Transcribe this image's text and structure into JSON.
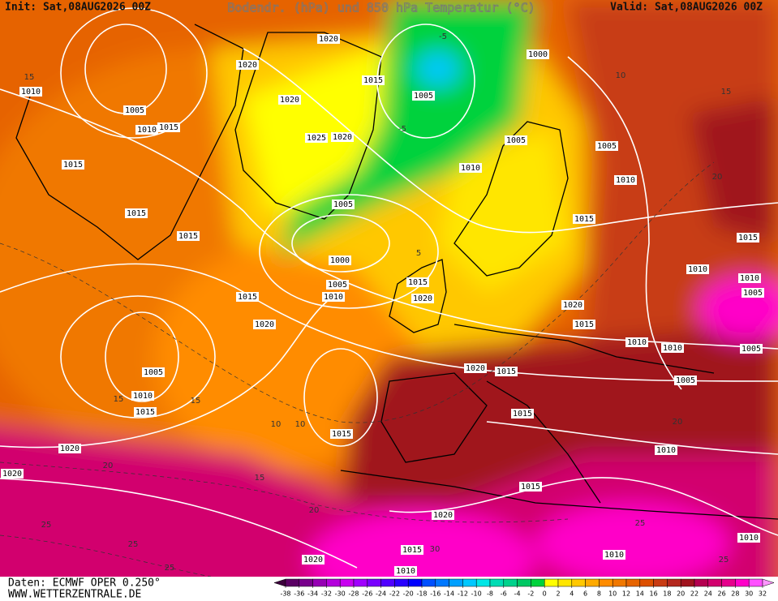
{
  "header": {
    "init": "Init: Sat,08AUG2026 00Z",
    "title": "Bodendr. (hPa) und 850 hPa Temperatur (°C)",
    "valid": "Valid: Sat,08AUG2026 00Z"
  },
  "footer": {
    "source": "Daten: ECMWF OPER 0.250°",
    "site": "WWW.WETTERZENTRALE.DE"
  },
  "colorbar": {
    "ticks": [
      -38,
      -36,
      -34,
      -32,
      -30,
      -28,
      -26,
      -24,
      -22,
      -20,
      -18,
      -16,
      -14,
      -12,
      -10,
      -8,
      -6,
      -4,
      -2,
      0,
      2,
      4,
      6,
      8,
      10,
      12,
      14,
      16,
      18,
      20,
      22,
      24,
      26,
      28,
      30,
      32
    ],
    "colors": [
      "#3c003c",
      "#5a0064",
      "#78008c",
      "#9600b4",
      "#b400dc",
      "#c800f0",
      "#a000ff",
      "#7800ff",
      "#5000ff",
      "#2800ff",
      "#0000ff",
      "#0050ff",
      "#0078ff",
      "#00a0ff",
      "#00c8ff",
      "#00e6e6",
      "#00dcb4",
      "#00d28c",
      "#00c864",
      "#00d23c",
      "#ffff00",
      "#ffe600",
      "#ffc800",
      "#ffaa00",
      "#ff8c00",
      "#f07800",
      "#e66400",
      "#dc5000",
      "#c83c14",
      "#b4281e",
      "#a0141e",
      "#b40050",
      "#d2006e",
      "#e6008c",
      "#ff00c8",
      "#ff50ff",
      "#ff96ff"
    ]
  },
  "isobar_labels": [
    1020,
    1020,
    1010,
    1015,
    1005,
    1020,
    1005,
    1010,
    1015,
    1025,
    1020,
    1000,
    1005,
    1005,
    1010,
    1015,
    1010,
    1005,
    1015,
    1015,
    1015,
    1015,
    1000,
    1005,
    1010,
    1015,
    1015,
    1020,
    1010,
    1010,
    1005,
    1020,
    1015,
    1020,
    1010,
    1010,
    1005,
    1005,
    1020,
    1015,
    1005,
    1010,
    1015,
    1015,
    1015,
    1020,
    1010,
    1020,
    1015,
    1020,
    1010,
    1015,
    1010,
    1020,
    1010
  ],
  "temperature_labels": [
    -5,
    -5,
    10,
    15,
    15,
    20,
    15,
    15,
    10,
    10,
    20,
    15,
    20,
    25,
    25,
    25,
    25,
    25,
    30,
    20,
    5
  ]
}
